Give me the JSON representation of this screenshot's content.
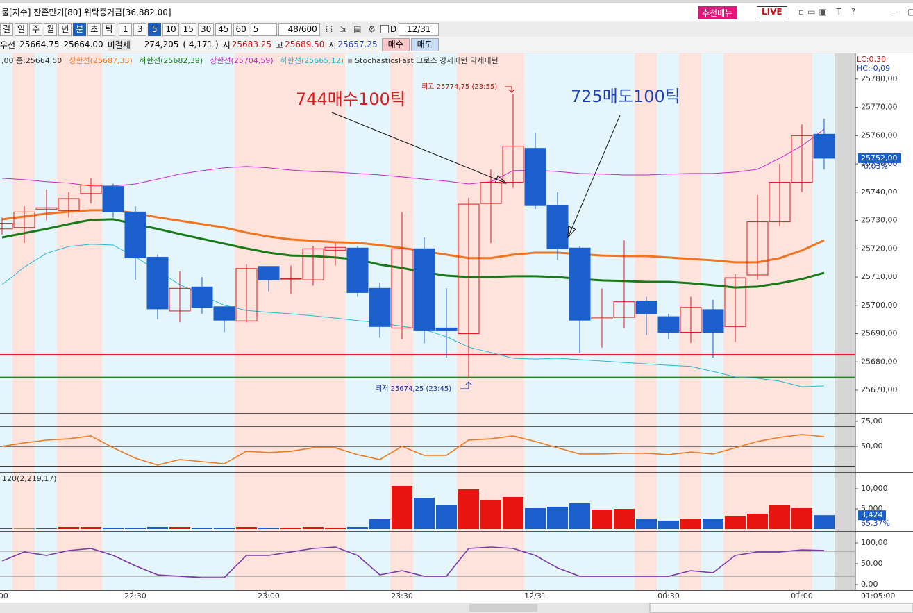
{
  "title_bar": {
    "text": "물[지수] 잔존만기[80] 위탁증거금[36,882.00]",
    "menu_button": "추천메뉴",
    "live_button": "LIVE"
  },
  "toolbar": {
    "periods": [
      "결",
      "일",
      "주",
      "월",
      "년",
      "분",
      "초",
      "틱"
    ],
    "intervals": [
      "1",
      "3",
      "5",
      "10",
      "15",
      "30",
      "45",
      "60"
    ],
    "unit_select": "5",
    "count": "48/600",
    "check_label": "D",
    "date": "12/31"
  },
  "quote_bar": {
    "items": [
      "우선",
      "25664.75",
      "25664.00",
      "미결제",
      "274,205",
      "( 4,171 )",
      "시",
      "25683.25",
      "고",
      "25689.50",
      "저",
      "25657.25"
    ],
    "buy": "매수",
    "sell": "매도"
  },
  "chart_data": [
    {
      "type": "candlestick",
      "legend_prefix": ",00 종:25664,50",
      "legend_suffix": "StochasticsFast 크로스 강세패턴  약세패턴",
      "up_color": "#e3171c",
      "down_color": "#1b5fcc",
      "ohlc": [
        [
          25727,
          25731,
          25725,
          25729
        ],
        [
          25727.5,
          25735,
          25722,
          25733
        ],
        [
          25734,
          25741,
          25730,
          25734.5
        ],
        [
          25733.5,
          25740,
          25731,
          25737.75
        ],
        [
          25739.5,
          25745,
          25736,
          25742.5
        ],
        [
          25742,
          25743,
          25731,
          25733
        ],
        [
          25733,
          25735,
          25709,
          25716.75
        ],
        [
          25717,
          25718,
          25695,
          25698.75
        ],
        [
          25698,
          25712,
          25694,
          25706
        ],
        [
          25706.5,
          25710,
          25697,
          25699.25
        ],
        [
          25699.5,
          25699.5,
          25690.5,
          25694.75
        ],
        [
          25694.5,
          25714.5,
          25694,
          25713
        ],
        [
          25713.75,
          25713.75,
          25705,
          25709
        ],
        [
          25709.25,
          25714,
          25704,
          25709.5
        ],
        [
          25709,
          25721,
          25707,
          25720
        ],
        [
          25719.5,
          25722,
          25714,
          25720.5
        ],
        [
          25720.25,
          25721,
          25703,
          25704.5
        ],
        [
          25706,
          25708,
          25688.5,
          25692.5
        ],
        [
          25692,
          25733,
          25688,
          25720
        ],
        [
          25720,
          25724,
          25686.5,
          25691
        ],
        [
          25692,
          25706,
          25681.5,
          25691
        ],
        [
          25690,
          25738,
          25674.25,
          25735.75
        ],
        [
          25736,
          25748,
          25722,
          25743.5
        ],
        [
          25743.5,
          25774.75,
          25741.5,
          25756.25
        ],
        [
          25755.5,
          25761,
          25734,
          25735.25
        ],
        [
          25735.25,
          25740,
          25716,
          25720
        ],
        [
          25720.25,
          25721,
          25683,
          25694.75
        ],
        [
          25695.25,
          25706,
          25685,
          25695.75
        ],
        [
          25695.75,
          25723,
          25692,
          25701.25
        ],
        [
          25701.5,
          25703,
          25689.5,
          25697
        ],
        [
          25696,
          25697,
          25688,
          25690.5
        ],
        [
          25690.5,
          25703,
          25686.75,
          25699.25
        ],
        [
          25698.5,
          25702,
          25681.5,
          25690.5
        ],
        [
          25692.5,
          25711,
          25687,
          25709.75
        ],
        [
          25710.75,
          25739,
          25709,
          25729.5
        ],
        [
          25729.5,
          25750,
          25728,
          25743.5
        ],
        [
          25743.5,
          25764,
          25740,
          25760
        ],
        [
          25760.5,
          25766,
          25748,
          25752
        ]
      ],
      "lines": [
        {
          "name": "상한선(25687,33)",
          "color": "#f07522",
          "width": 3,
          "values": [
            25730.4,
            25731.4,
            25732.4,
            25733.1,
            25733.6,
            25733.6,
            25732.6,
            25731.1,
            25729.9,
            25728.7,
            25727.5,
            25725.7,
            25724.3,
            25723.3,
            25722.8,
            25722.3,
            25722.1,
            25721.3,
            25720.3,
            25719.1,
            25717.9,
            25716.7,
            25716.7,
            25717.9,
            25718.6,
            25718.6,
            25718.1,
            25717.6,
            25717.4,
            25717.4,
            25716.9,
            25716.4,
            25715.9,
            25715.2,
            25715.2,
            25716.7,
            25719.4,
            25723.0
          ]
        },
        {
          "name": "하한선(25682,39)",
          "color": "#1a7a1a",
          "width": 3,
          "values": [
            25724.0,
            25725.5,
            25727.0,
            25728.7,
            25730.2,
            25730.4,
            25728.7,
            25727.0,
            25725.2,
            25723.5,
            25721.8,
            25720.1,
            25718.6,
            25717.6,
            25717.4,
            25716.9,
            25716.2,
            25714.4,
            25713.2,
            25711.7,
            25710.5,
            25710.0,
            25710.0,
            25710.3,
            25710.3,
            25710.0,
            25709.3,
            25708.8,
            25708.6,
            25708.3,
            25708.3,
            25707.8,
            25707.1,
            25706.3,
            25706.6,
            25707.8,
            25709.3,
            25711.5
          ]
        },
        {
          "name": "상한선(25704,59)",
          "color": "#cc22cc",
          "width": 1,
          "values": [
            25744.9,
            25744.4,
            25743.7,
            25743.2,
            25742.2,
            25742.2,
            25742.9,
            25744.6,
            25746.4,
            25747.6,
            25748.6,
            25749.1,
            25748.6,
            25747.8,
            25747.3,
            25747.1,
            25746.6,
            25746.1,
            25745.4,
            25744.6,
            25743.9,
            25742.9,
            25743.7,
            25747.6,
            25747.8,
            25747.3,
            25746.6,
            25746.4,
            25746.1,
            25746.1,
            25746.4,
            25746.6,
            25746.6,
            25747.1,
            25748.1,
            25752.0,
            25756.4,
            25762.3
          ]
        },
        {
          "name": "하한선(25665,12)",
          "color": "#2ab5d0",
          "width": 1,
          "values": [
            25707.3,
            25713.5,
            25718.4,
            25720.8,
            25721.6,
            25721.3,
            25717.1,
            25712.2,
            25707.3,
            25703.6,
            25700.0,
            25698.2,
            25697.5,
            25697.0,
            25696.3,
            25695.5,
            25694.6,
            25693.8,
            25692.6,
            25691.4,
            25688.9,
            25685.2,
            25683.3,
            25681.3,
            25681.0,
            25681.3,
            25680.8,
            25680.3,
            25679.8,
            25679.3,
            25678.8,
            25678.4,
            25676.6,
            25674.7,
            25674.2,
            25673.2,
            25671.2,
            25671.5
          ]
        }
      ],
      "hlines": [
        {
          "value": 25682.5,
          "color": "#e00000"
        },
        {
          "value": 25674.5,
          "color": "#1a8a1a"
        }
      ],
      "ylim": [
        25661.9,
        25788.8
      ],
      "yticks": [
        {
          "value": 25670,
          "label": "25670,00"
        },
        {
          "value": 25680,
          "label": "25680,00"
        },
        {
          "value": 25690,
          "label": "25690,00"
        },
        {
          "value": 25700,
          "label": "25700,00"
        },
        {
          "value": 25710,
          "label": "25710,00"
        },
        {
          "value": 25720,
          "label": "25720,00"
        },
        {
          "value": 25730,
          "label": "25730,00"
        },
        {
          "value": 25740,
          "label": "25740,00"
        },
        {
          "value": 25750,
          "label": "25750,00"
        },
        {
          "value": 25760,
          "label": "25760,00"
        },
        {
          "value": 25770,
          "label": "25770,00"
        },
        {
          "value": 25780,
          "label": "25780,00"
        }
      ],
      "last_price": {
        "value": 25752,
        "label": "25752,00"
      },
      "change_label": "-0,03%",
      "lc_label": "LC:0,30",
      "hc_label": "HC:-0,09",
      "annotations": [
        {
          "text": "744매수100틱",
          "color": "#e3171c"
        },
        {
          "text": "725매도100틱",
          "color": "#1f3fbf"
        }
      ],
      "high_label": "최고 25774,75 (23:55)",
      "low_label": "최저 25674,25 (23:45)",
      "x_labels": [
        ":00",
        null,
        null,
        null,
        null,
        null,
        "22:30",
        null,
        null,
        null,
        null,
        null,
        "23:00",
        null,
        null,
        null,
        null,
        null,
        "23:30",
        null,
        null,
        null,
        null,
        null,
        "12/31",
        null,
        null,
        null,
        null,
        null,
        "00:30",
        null,
        null,
        null,
        null,
        null,
        "01:00",
        null
      ],
      "x_axis_end": "01:05:00"
    },
    {
      "type": "line",
      "series": [
        {
          "color": "#ee7a22",
          "values": [
            50,
            53.5,
            56.3,
            57.6,
            60.4,
            48.6,
            38.2,
            31.3,
            36.8,
            34.7,
            32.6,
            45.1,
            43.8,
            45.1,
            48.6,
            48.6,
            41.7,
            36.8,
            50,
            41,
            41,
            56.3,
            57.6,
            60.4,
            54.9,
            48.6,
            42.4,
            42.4,
            43.1,
            43.1,
            41.7,
            44.4,
            42.4,
            48.6,
            54.9,
            59,
            61.8,
            59.7
          ]
        }
      ],
      "hlines": [
        {
          "value": 70,
          "color": "#000000"
        },
        {
          "value": 50,
          "color": "#000000"
        },
        {
          "value": 30,
          "color": "#000000"
        }
      ],
      "ylim": [
        24.3,
        81.9
      ],
      "yticks": [
        {
          "value": 75,
          "label": "75,00"
        },
        {
          "value": 50,
          "label": "50,00"
        }
      ]
    },
    {
      "type": "bar",
      "label": "120(2,219,17)",
      "values": [
        172,
        100,
        172,
        517,
        517,
        345,
        345,
        517,
        517,
        345,
        345,
        517,
        345,
        345,
        517,
        345,
        517,
        2414,
        10690,
        7759,
        5862,
        9828,
        7241,
        7931,
        5172,
        5517,
        6379,
        4828,
        5000,
        2586,
        2069,
        2586,
        2586,
        3276,
        3793,
        5862,
        5172,
        3424
      ],
      "last_label": "3,424",
      "ratio_label": "65,37%",
      "ylim": [
        -517,
        13793
      ],
      "yticks": [
        {
          "value": 10000,
          "label": "10,000"
        },
        {
          "value": 5000,
          "label": "5,000"
        }
      ]
    },
    {
      "type": "line",
      "series": [
        {
          "color": "#7a3aa8",
          "values": [
            56.7,
            78.3,
            70,
            81.7,
            86.7,
            70,
            45,
            23.3,
            20,
            16.7,
            16.7,
            70,
            70,
            78.3,
            86.7,
            90,
            70,
            23.3,
            33.3,
            20,
            20,
            86.7,
            90,
            86.7,
            70,
            40,
            20,
            20,
            20,
            20,
            20,
            33.3,
            28.3,
            70,
            78.3,
            78.3,
            83.3,
            81.7
          ]
        }
      ],
      "hlines": [
        {
          "value": 80,
          "color": "#888888"
        },
        {
          "value": 20,
          "color": "#888888"
        }
      ],
      "ylim": [
        -13.3,
        125
      ],
      "yticks": [
        {
          "value": 100,
          "label": "100,00"
        },
        {
          "value": 50,
          "label": "50,00"
        },
        {
          "value": 0,
          "label": "0,00"
        }
      ]
    }
  ]
}
